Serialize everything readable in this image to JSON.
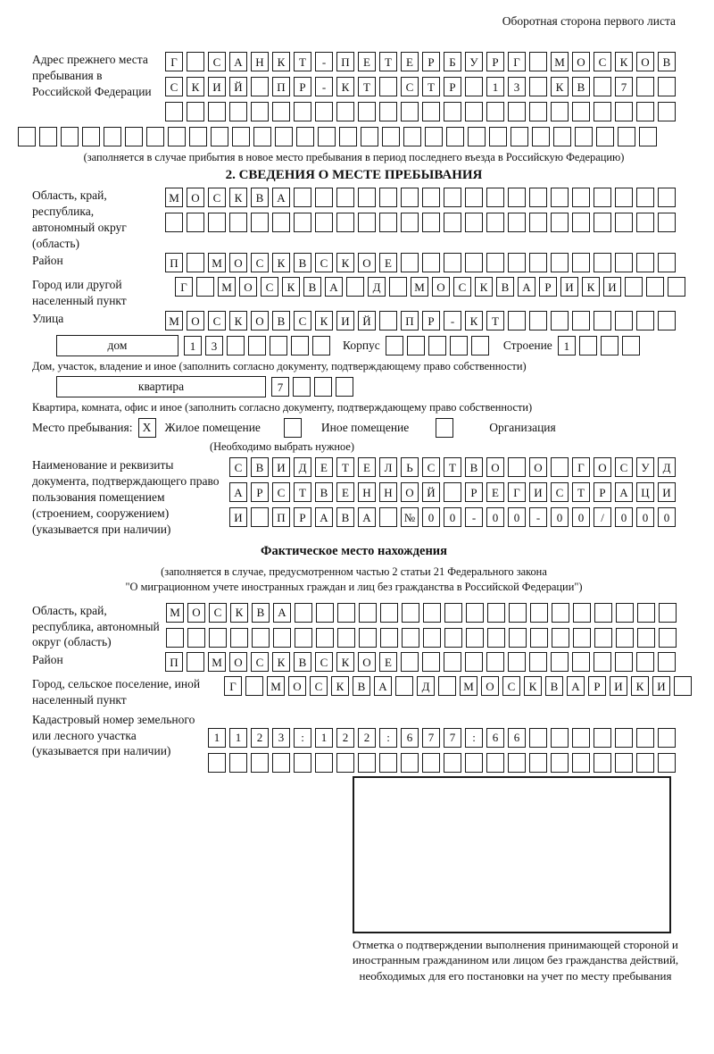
{
  "header": {
    "note": "Оборотная сторона первого листа"
  },
  "prev_address": {
    "label": "Адрес прежнего места пребывания в Российской Федерации",
    "rows": [
      [
        "Г",
        "",
        "С",
        "А",
        "Н",
        "К",
        "Т",
        "-",
        "П",
        "Е",
        "Т",
        "Е",
        "Р",
        "Б",
        "У",
        "Р",
        "Г",
        "",
        "М",
        "О",
        "С",
        "К",
        "О",
        "В"
      ],
      [
        "С",
        "К",
        "И",
        "Й",
        "",
        "П",
        "Р",
        "-",
        "К",
        "Т",
        "",
        "С",
        "Т",
        "Р",
        "",
        "1",
        "3",
        "",
        "К",
        "В",
        "",
        "7",
        "",
        ""
      ],
      [
        "",
        "",
        "",
        "",
        "",
        "",
        "",
        "",
        "",
        "",
        "",
        "",
        "",
        "",
        "",
        "",
        "",
        "",
        "",
        "",
        "",
        "",
        "",
        ""
      ],
      [
        "",
        "",
        "",
        "",
        "",
        "",
        "",
        "",
        "",
        "",
        "",
        "",
        "",
        "",
        "",
        "",
        "",
        "",
        "",
        "",
        "",
        "",
        "",
        "",
        "",
        "",
        "",
        "",
        "",
        ""
      ]
    ],
    "caption": "(заполняется в случае прибытия в новое место пребывания в период последнего въезда в Российскую Федерацию)"
  },
  "section2": {
    "title": "2. СВЕДЕНИЯ О МЕСТЕ ПРЕБЫВАНИЯ",
    "oblast": {
      "label": "Область, край, республика, автономный округ (область)",
      "rows": [
        [
          "М",
          "О",
          "С",
          "К",
          "В",
          "А",
          "",
          "",
          "",
          "",
          "",
          "",
          "",
          "",
          "",
          "",
          "",
          "",
          "",
          "",
          "",
          "",
          "",
          ""
        ],
        [
          "",
          "",
          "",
          "",
          "",
          "",
          "",
          "",
          "",
          "",
          "",
          "",
          "",
          "",
          "",
          "",
          "",
          "",
          "",
          "",
          "",
          "",
          "",
          ""
        ]
      ]
    },
    "raion": {
      "label": "Район",
      "row": [
        "П",
        "",
        "М",
        "О",
        "С",
        "К",
        "В",
        "С",
        "К",
        "О",
        "Е",
        "",
        "",
        "",
        "",
        "",
        "",
        "",
        "",
        "",
        "",
        "",
        "",
        ""
      ]
    },
    "gorod": {
      "label": "Город или другой населенный пункт",
      "row": [
        "Г",
        "",
        "М",
        "О",
        "С",
        "К",
        "В",
        "А",
        "",
        "Д",
        "",
        "М",
        "О",
        "С",
        "К",
        "В",
        "А",
        "Р",
        "И",
        "К",
        "И",
        "",
        "",
        ""
      ]
    },
    "ulitsa": {
      "label": "Улица",
      "row": [
        "М",
        "О",
        "С",
        "К",
        "О",
        "В",
        "С",
        "К",
        "И",
        "Й",
        "",
        "П",
        "Р",
        "-",
        "К",
        "Т",
        "",
        "",
        "",
        "",
        "",
        "",
        "",
        ""
      ]
    },
    "dom": {
      "box_label": "дом",
      "cells": [
        "1",
        "3",
        "",
        "",
        "",
        "",
        ""
      ],
      "korpus_label": "Корпус",
      "korpus_cells": [
        "",
        "",
        "",
        "",
        ""
      ],
      "stroenie_label": "Строение",
      "stroenie_cells": [
        "1",
        "",
        "",
        ""
      ]
    },
    "dom_caption": "Дом, участок, владение и иное (заполнить согласно документу, подтверждающему право собственности)",
    "kvartira": {
      "box_label": "квартира",
      "cells": [
        "7",
        "",
        "",
        ""
      ]
    },
    "kvartira_caption": "Квартира, комната, офис и иное (заполнить согласно документу, подтверждающему право собственности)",
    "mesto": {
      "label": "Место пребывания:",
      "options": [
        {
          "label": "Жилое помещение",
          "checked": "X"
        },
        {
          "label": "Иное помещение",
          "checked": ""
        },
        {
          "label": "Организация",
          "checked": ""
        }
      ],
      "note": "(Необходимо выбрать нужное)"
    },
    "document": {
      "label": "Наименование и реквизиты документа, подтверждающего право пользования помещением (строением, сооружением) (указывается при наличии)",
      "rows": [
        [
          "С",
          "В",
          "И",
          "Д",
          "Е",
          "Т",
          "Е",
          "Л",
          "Ь",
          "С",
          "Т",
          "В",
          "О",
          "",
          "О",
          "",
          "Г",
          "О",
          "С",
          "У",
          "Д"
        ],
        [
          "А",
          "Р",
          "С",
          "Т",
          "В",
          "Е",
          "Н",
          "Н",
          "О",
          "Й",
          "",
          "Р",
          "Е",
          "Г",
          "И",
          "С",
          "Т",
          "Р",
          "А",
          "Ц",
          "И"
        ],
        [
          "И",
          "",
          "П",
          "Р",
          "А",
          "В",
          "А",
          "",
          "№",
          "0",
          "0",
          "-",
          "0",
          "0",
          "-",
          "0",
          "0",
          "/",
          "0",
          "0",
          "0"
        ]
      ]
    }
  },
  "fact_location": {
    "title": "Фактическое место нахождения",
    "caption_line1": "(заполняется в случае, предусмотренном частью 2 статьи 21 Федерального закона",
    "caption_line2": "\"О миграционном учете иностранных граждан и лиц без гражданства в Российской Федерации\")",
    "oblast": {
      "label": "Область, край, республика, автономный округ (область)",
      "rows": [
        [
          "М",
          "О",
          "С",
          "К",
          "В",
          "А",
          "",
          "",
          "",
          "",
          "",
          "",
          "",
          "",
          "",
          "",
          "",
          "",
          "",
          "",
          "",
          "",
          "",
          ""
        ],
        [
          "",
          "",
          "",
          "",
          "",
          "",
          "",
          "",
          "",
          "",
          "",
          "",
          "",
          "",
          "",
          "",
          "",
          "",
          "",
          "",
          "",
          "",
          "",
          ""
        ]
      ]
    },
    "raion": {
      "label": "Район",
      "row": [
        "П",
        "",
        "М",
        "О",
        "С",
        "К",
        "В",
        "С",
        "К",
        "О",
        "Е",
        "",
        "",
        "",
        "",
        "",
        "",
        "",
        "",
        "",
        "",
        "",
        "",
        ""
      ]
    },
    "gorod": {
      "label": "Город, сельское поселение, иной населенный пункт",
      "row": [
        "Г",
        "",
        "М",
        "О",
        "С",
        "К",
        "В",
        "А",
        "",
        "Д",
        "",
        "М",
        "О",
        "С",
        "К",
        "В",
        "А",
        "Р",
        "И",
        "К",
        "И",
        ""
      ]
    },
    "kadastr": {
      "label": "Кадастровый номер земельного или лесного участка (указывается при наличии)",
      "rows": [
        [
          "1",
          "1",
          "2",
          "3",
          ":",
          "1",
          "2",
          "2",
          ":",
          "6",
          "7",
          "7",
          ":",
          "6",
          "6",
          "",
          "",
          "",
          "",
          "",
          "",
          ""
        ],
        [
          "",
          "",
          "",
          "",
          "",
          "",
          "",
          "",
          "",
          "",
          "",
          "",
          "",
          "",
          "",
          "",
          "",
          "",
          "",
          "",
          "",
          ""
        ]
      ]
    },
    "stamp_caption": "Отметка о подтверждении выполнения принимающей стороной и иностранным гражданином или лицом без гражданства действий, необходимых для его постановки на учет по месту пребывания"
  }
}
